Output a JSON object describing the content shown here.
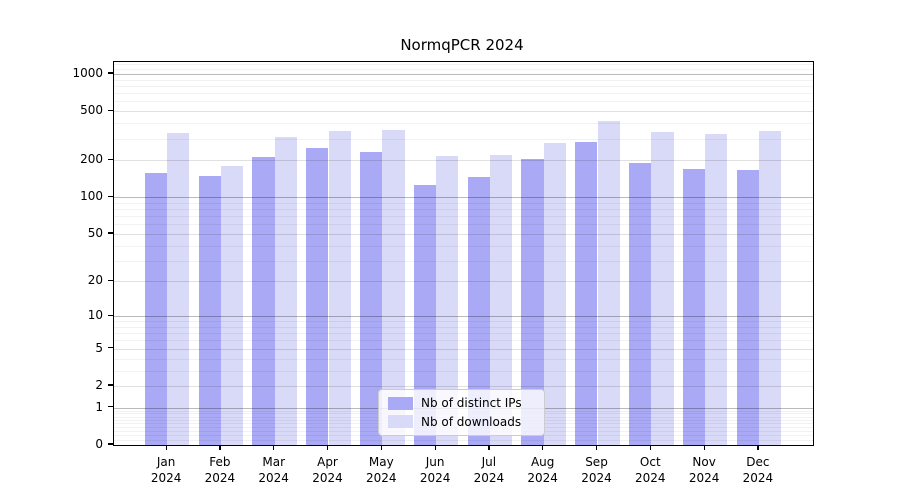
{
  "chart_data": {
    "type": "bar",
    "title": "NormqPCR 2024",
    "categories": [
      {
        "month": "Jan",
        "year": "2024"
      },
      {
        "month": "Feb",
        "year": "2024"
      },
      {
        "month": "Mar",
        "year": "2024"
      },
      {
        "month": "Apr",
        "year": "2024"
      },
      {
        "month": "May",
        "year": "2024"
      },
      {
        "month": "Jun",
        "year": "2024"
      },
      {
        "month": "Jul",
        "year": "2024"
      },
      {
        "month": "Aug",
        "year": "2024"
      },
      {
        "month": "Sep",
        "year": "2024"
      },
      {
        "month": "Oct",
        "year": "2024"
      },
      {
        "month": "Nov",
        "year": "2024"
      },
      {
        "month": "Dec",
        "year": "2024"
      }
    ],
    "series": [
      {
        "name": "Nb of distinct IPs",
        "color": "#a9a9f5",
        "values": [
          157,
          149,
          212,
          250,
          232,
          125,
          146,
          206,
          279,
          188,
          169,
          166
        ]
      },
      {
        "name": "Nb of downloads",
        "color": "#d9d9f8",
        "values": [
          334,
          180,
          306,
          343,
          351,
          217,
          222,
          277,
          416,
          338,
          324,
          346
        ]
      }
    ],
    "xlabel": "",
    "ylabel": "",
    "yscale": "log1p",
    "ylim": [
      0,
      1250
    ],
    "y_ticks": [
      0,
      1,
      2,
      5,
      10,
      20,
      50,
      100,
      200,
      500,
      1000
    ],
    "y_tick_labels": [
      "0",
      "1",
      "2",
      "5",
      "10",
      "20",
      "50",
      "100",
      "200",
      "500",
      "1000"
    ],
    "y_minor_gridlines": [
      0.1,
      0.2,
      0.3,
      0.4,
      0.5,
      0.6,
      0.7,
      0.8,
      0.9,
      3,
      4,
      6,
      7,
      8,
      9,
      30,
      40,
      60,
      70,
      80,
      90,
      300,
      400,
      600,
      700,
      800,
      900,
      1100,
      1200
    ],
    "grid": true,
    "legend_position": "lower-center"
  }
}
